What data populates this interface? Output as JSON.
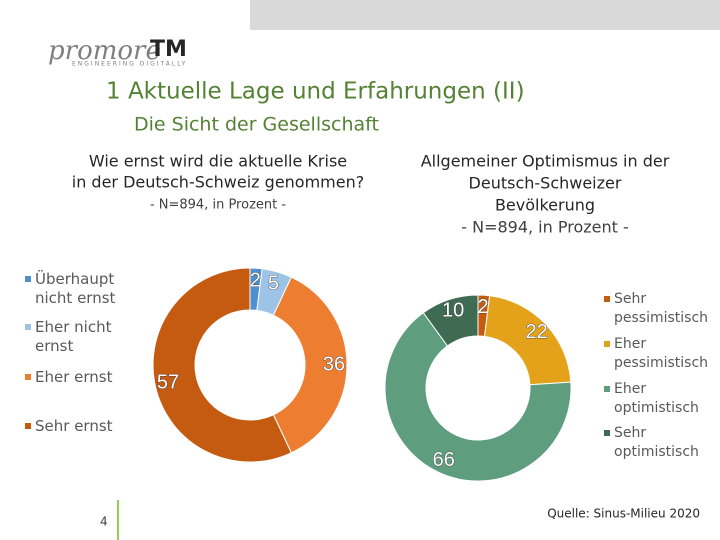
{
  "header": {
    "logo": "promore",
    "logo_mark": "TM",
    "logo_tagline": "ENGINEERING DIGITALLY",
    "title": "1 Aktuelle Lage und Erfahrungen (II)",
    "subtitle": "Die Sicht der Gesellschaft"
  },
  "chart_data": [
    {
      "type": "donut",
      "title": [
        "Wie ernst wird die aktuelle Krise",
        "in der Deutsch-Schweiz genommen?"
      ],
      "subtitle": "- N=894, in Prozent -",
      "categories": [
        "Überhaupt nicht ernst",
        "Eher nicht ernst",
        "Eher ernst",
        "Sehr ernst"
      ],
      "values": [
        2,
        5,
        36,
        57
      ],
      "colors": [
        "#4f8fd0",
        "#9dc3e6",
        "#ed7d31",
        "#c55a11"
      ],
      "legend": "left"
    },
    {
      "type": "donut",
      "title": [
        "Allgemeiner Optimismus in der",
        "Deutsch-Schweizer",
        "Bevölkerung"
      ],
      "subtitle": "- N=894, in Prozent -",
      "categories": [
        "Sehr pessimistisch",
        "Eher pessimistisch",
        "Eher optimistisch",
        "Sehr optimistisch"
      ],
      "values": [
        2,
        22,
        66,
        10
      ],
      "colors": [
        "#c55a11",
        "#e3a21a",
        "#5e9e7e",
        "#3e6b52"
      ],
      "legend": "right"
    }
  ],
  "footer": {
    "page": "4",
    "source": "Quelle: Sinus-Milieu 2020"
  }
}
